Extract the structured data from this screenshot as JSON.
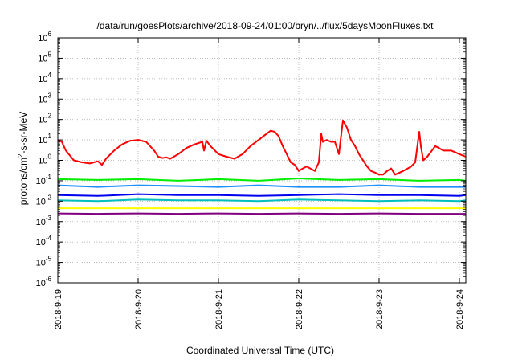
{
  "chart_data": {
    "type": "line",
    "title": "/data/run/goesPlots/archive/2018-09-24/01:00/bryn/../flux/5daysMoonFluxes.txt",
    "xlabel": "Coordinated Universal Time (UTC)",
    "ylabel_base": "protons/cm",
    "ylabel_sup": "2",
    "ylabel_rest": "-s-sr-MeV",
    "y_scale": "log",
    "ylim_exp": [
      -6,
      6
    ],
    "y_ticks": [
      {
        "base": "10",
        "exp": "-6"
      },
      {
        "base": "10",
        "exp": "-5"
      },
      {
        "base": "10",
        "exp": "-4"
      },
      {
        "base": "10",
        "exp": "-3"
      },
      {
        "base": "10",
        "exp": "-2"
      },
      {
        "base": "10",
        "exp": "-1"
      },
      {
        "base": "10",
        "exp": "0"
      },
      {
        "base": "10",
        "exp": "1"
      },
      {
        "base": "10",
        "exp": "2"
      },
      {
        "base": "10",
        "exp": "3"
      },
      {
        "base": "10",
        "exp": "4"
      },
      {
        "base": "10",
        "exp": "5"
      },
      {
        "base": "10",
        "exp": "6"
      }
    ],
    "x_ticks": [
      "2018-9-19",
      "2018-9-20",
      "2018-9-21",
      "2018-9-22",
      "2018-9-23",
      "2018-9-24"
    ],
    "x_unit": "days since 2018-9-19",
    "xlim": [
      0,
      5.08
    ],
    "grid": true,
    "legend": "none",
    "series": [
      {
        "color": "#ff0000",
        "x": [
          0,
          0.05,
          0.1,
          0.2,
          0.3,
          0.4,
          0.5,
          0.55,
          0.6,
          0.7,
          0.8,
          0.9,
          1.0,
          1.1,
          1.2,
          1.25,
          1.3,
          1.35,
          1.4,
          1.5,
          1.6,
          1.7,
          1.8,
          1.82,
          1.85,
          1.9,
          2.0,
          2.1,
          2.2,
          2.3,
          2.4,
          2.5,
          2.6,
          2.65,
          2.7,
          2.75,
          2.8,
          2.85,
          2.9,
          2.95,
          3.0,
          3.05,
          3.1,
          3.2,
          3.25,
          3.28,
          3.3,
          3.35,
          3.4,
          3.45,
          3.5,
          3.55,
          3.6,
          3.65,
          3.7,
          3.75,
          3.8,
          3.85,
          3.9,
          3.95,
          4.0,
          4.05,
          4.1,
          4.15,
          4.2,
          4.3,
          4.4,
          4.45,
          4.5,
          4.52,
          4.55,
          4.6,
          4.7,
          4.8,
          4.9,
          5.0,
          5.08
        ],
        "y": [
          10,
          8,
          3,
          1,
          0.8,
          0.7,
          0.9,
          0.6,
          1.2,
          3,
          6,
          9,
          10,
          8,
          3,
          1.5,
          1.3,
          1.4,
          1.2,
          2,
          4,
          6,
          8,
          3,
          9,
          5,
          2,
          1.5,
          1.2,
          2,
          5,
          10,
          20,
          28,
          25,
          15,
          5,
          2,
          0.8,
          0.6,
          0.3,
          0.4,
          0.5,
          0.3,
          0.8,
          20,
          8,
          10,
          8,
          8,
          2,
          90,
          40,
          10,
          5,
          2,
          1,
          0.5,
          0.3,
          0.25,
          0.2,
          0.2,
          0.3,
          0.4,
          0.2,
          0.3,
          0.5,
          0.8,
          25,
          5,
          1,
          1.5,
          5,
          3,
          3,
          2,
          1.5
        ]
      },
      {
        "color": "#00ee00",
        "x": [
          0,
          0.5,
          1.0,
          1.5,
          2.0,
          2.5,
          3.0,
          3.5,
          4.0,
          4.5,
          5.0,
          5.08
        ],
        "y": [
          0.12,
          0.11,
          0.12,
          0.1,
          0.12,
          0.1,
          0.13,
          0.11,
          0.12,
          0.1,
          0.11,
          0.1
        ]
      },
      {
        "color": "#1e90ff",
        "x": [
          0,
          0.5,
          1.0,
          1.5,
          2.0,
          2.5,
          3.0,
          3.5,
          4.0,
          4.5,
          5.0,
          5.08
        ],
        "y": [
          0.06,
          0.05,
          0.06,
          0.055,
          0.05,
          0.06,
          0.05,
          0.05,
          0.06,
          0.05,
          0.05,
          0.05
        ]
      },
      {
        "color": "#0000ee",
        "x": [
          0,
          0.5,
          1.0,
          1.5,
          2.0,
          2.5,
          3.0,
          3.5,
          4.0,
          4.5,
          5.0,
          5.08
        ],
        "y": [
          0.02,
          0.018,
          0.022,
          0.02,
          0.02,
          0.018,
          0.02,
          0.022,
          0.02,
          0.02,
          0.018,
          0.02
        ]
      },
      {
        "color": "#00bfbf",
        "x": [
          0,
          0.5,
          1.0,
          1.5,
          2.0,
          2.5,
          3.0,
          3.5,
          4.0,
          4.5,
          5.0,
          5.08
        ],
        "y": [
          0.011,
          0.01,
          0.012,
          0.011,
          0.011,
          0.01,
          0.012,
          0.011,
          0.01,
          0.011,
          0.01,
          0.011
        ]
      },
      {
        "color": "#ffff00",
        "x": [
          0,
          0.5,
          1.0,
          1.5,
          2.0,
          2.5,
          3.0,
          3.5,
          4.0,
          4.5,
          5.0,
          5.08
        ],
        "y": [
          0.0045,
          0.0045,
          0.0045,
          0.0045,
          0.0045,
          0.0045,
          0.0045,
          0.0045,
          0.0045,
          0.0045,
          0.0045,
          0.0045
        ]
      },
      {
        "color": "#800080",
        "x": [
          0,
          0.5,
          1.0,
          1.5,
          2.0,
          2.5,
          3.0,
          3.5,
          4.0,
          4.5,
          5.0,
          5.08
        ],
        "y": [
          0.0025,
          0.0024,
          0.0025,
          0.0024,
          0.0025,
          0.0024,
          0.0025,
          0.0024,
          0.0025,
          0.0024,
          0.0024,
          0.0024
        ]
      }
    ]
  }
}
